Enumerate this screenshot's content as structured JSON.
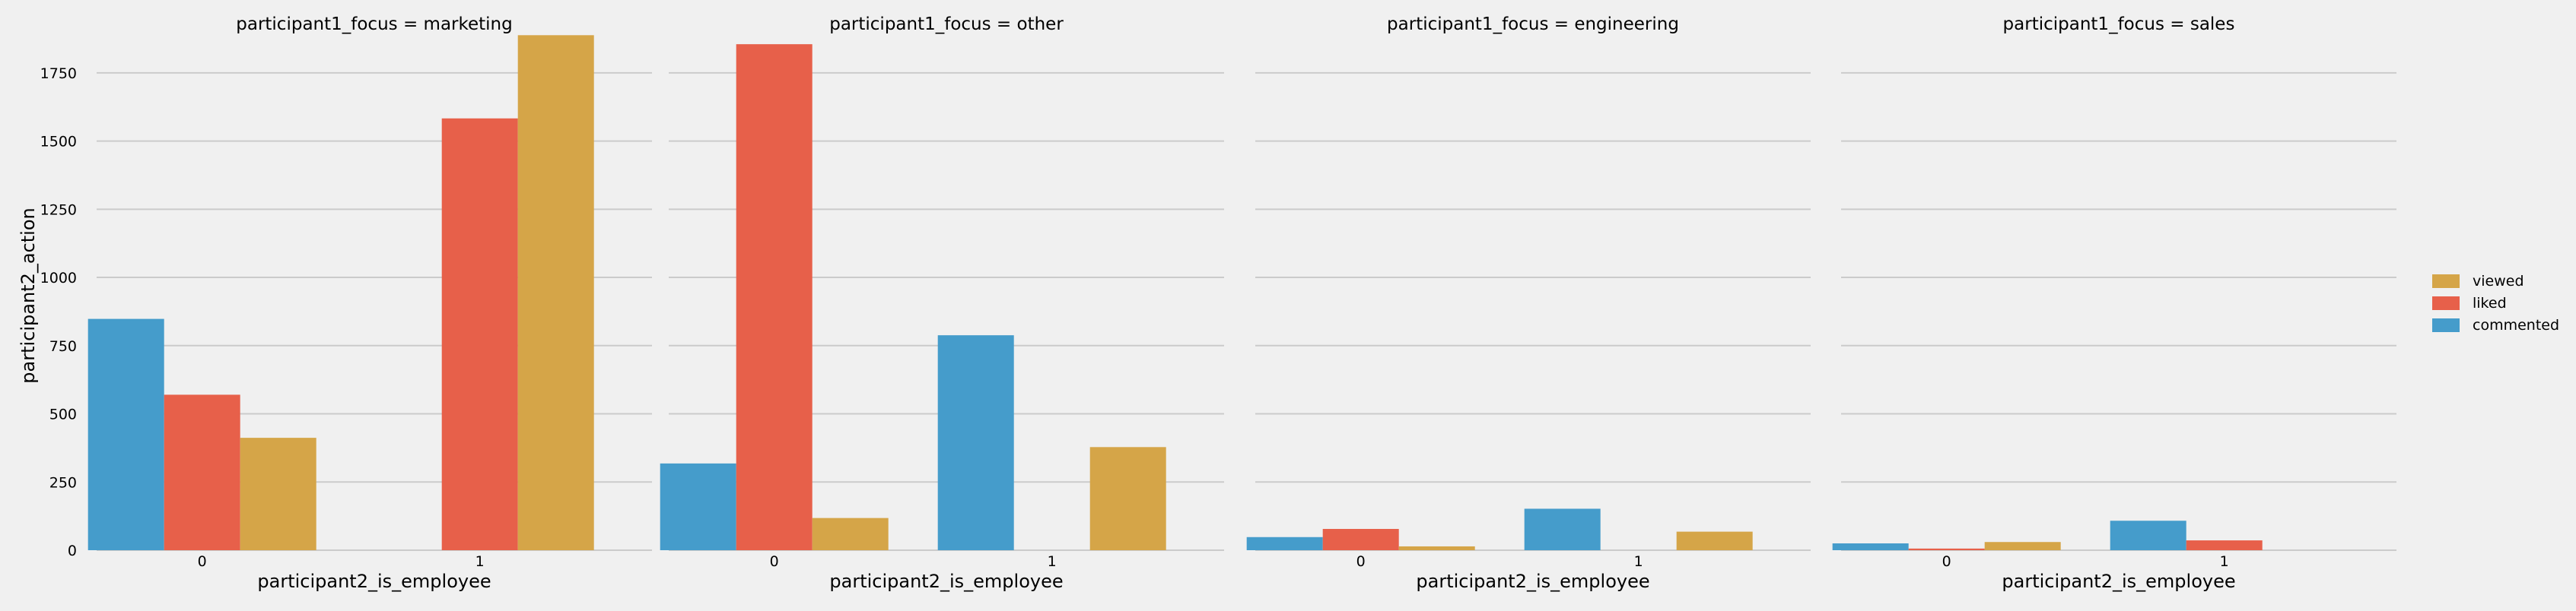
{
  "chart_data": {
    "type": "bar",
    "layout": "faceted",
    "xlabel": "participant2_is_employee",
    "ylabel": "participant2_action",
    "ylim": [
      0,
      1900
    ],
    "yticks": [
      0,
      250,
      500,
      750,
      1000,
      1250,
      1500,
      1750
    ],
    "grid": "horizontal",
    "legend_position": "right",
    "categories": [
      "0",
      "1"
    ],
    "hue_order": [
      "commented",
      "liked",
      "viewed"
    ],
    "legend": [
      {
        "name": "viewed",
        "color": "#d5a548"
      },
      {
        "name": "liked",
        "color": "#e7604a"
      },
      {
        "name": "commented",
        "color": "#459ccb"
      }
    ],
    "panels": [
      {
        "title": "participant1_focus = marketing",
        "series": [
          {
            "name": "commented",
            "color": "#459ccb",
            "values": [
              848,
              null
            ]
          },
          {
            "name": "liked",
            "color": "#e7604a",
            "values": [
              570,
              1583
            ]
          },
          {
            "name": "viewed",
            "color": "#d5a548",
            "values": [
              412,
              1888
            ]
          }
        ]
      },
      {
        "title": "participant1_focus = other",
        "series": [
          {
            "name": "commented",
            "color": "#459ccb",
            "values": [
              318,
              788
            ]
          },
          {
            "name": "liked",
            "color": "#e7604a",
            "values": [
              1855,
              null
            ]
          },
          {
            "name": "viewed",
            "color": "#d5a548",
            "values": [
              118,
              378
            ]
          }
        ]
      },
      {
        "title": "participant1_focus = engineering",
        "series": [
          {
            "name": "commented",
            "color": "#459ccb",
            "values": [
              48,
              152
            ]
          },
          {
            "name": "liked",
            "color": "#e7604a",
            "values": [
              78,
              null
            ]
          },
          {
            "name": "viewed",
            "color": "#d5a548",
            "values": [
              14,
              68
            ]
          }
        ]
      },
      {
        "title": "participant1_focus = sales",
        "series": [
          {
            "name": "commented",
            "color": "#459ccb",
            "values": [
              25,
              108
            ]
          },
          {
            "name": "liked",
            "color": "#e7604a",
            "values": [
              6,
              36
            ]
          },
          {
            "name": "viewed",
            "color": "#d5a548",
            "values": [
              30,
              null
            ]
          }
        ]
      }
    ]
  }
}
